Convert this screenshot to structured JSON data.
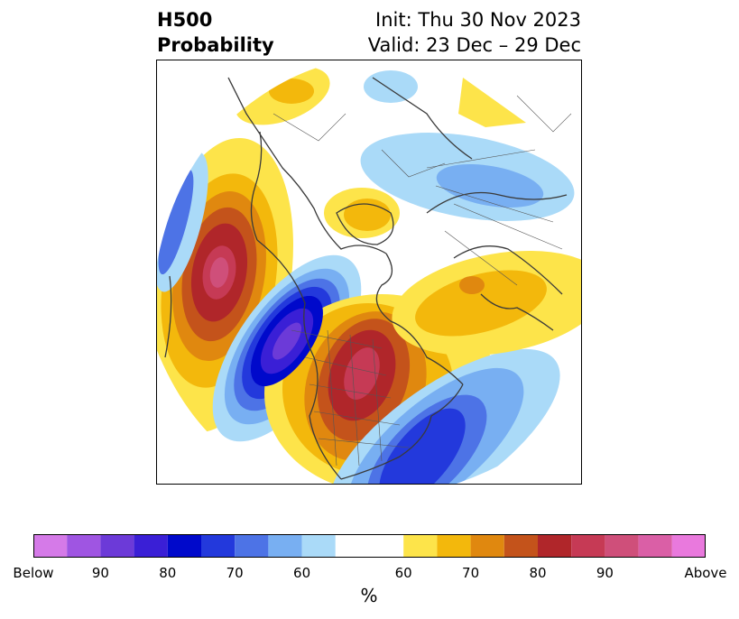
{
  "header": {
    "title_line1": "H500",
    "title_line2": "Probability",
    "init": "Init: Thu 30 Nov 2023",
    "valid": "Valid: 23 Dec – 29 Dec"
  },
  "colorbar": {
    "unit": "%",
    "tick_labels": [
      "Below",
      "90",
      "80",
      "70",
      "60",
      "60",
      "70",
      "80",
      "90",
      "Above"
    ],
    "colors": [
      "#d57ae8",
      "#9f55e2",
      "#6c3ad8",
      "#3a1fd6",
      "#0009cb",
      "#2339dc",
      "#4d73e6",
      "#78aff2",
      "#aadaf8",
      "#ffffff",
      "#fde44a",
      "#f3b80c",
      "#e0880f",
      "#c4531b",
      "#b0262a",
      "#c63a55",
      "#cf4f7a",
      "#da5fa6",
      "#e979dd"
    ]
  },
  "map_colors": {
    "land_outline": "#3a3a3a",
    "border": "#555555"
  }
}
